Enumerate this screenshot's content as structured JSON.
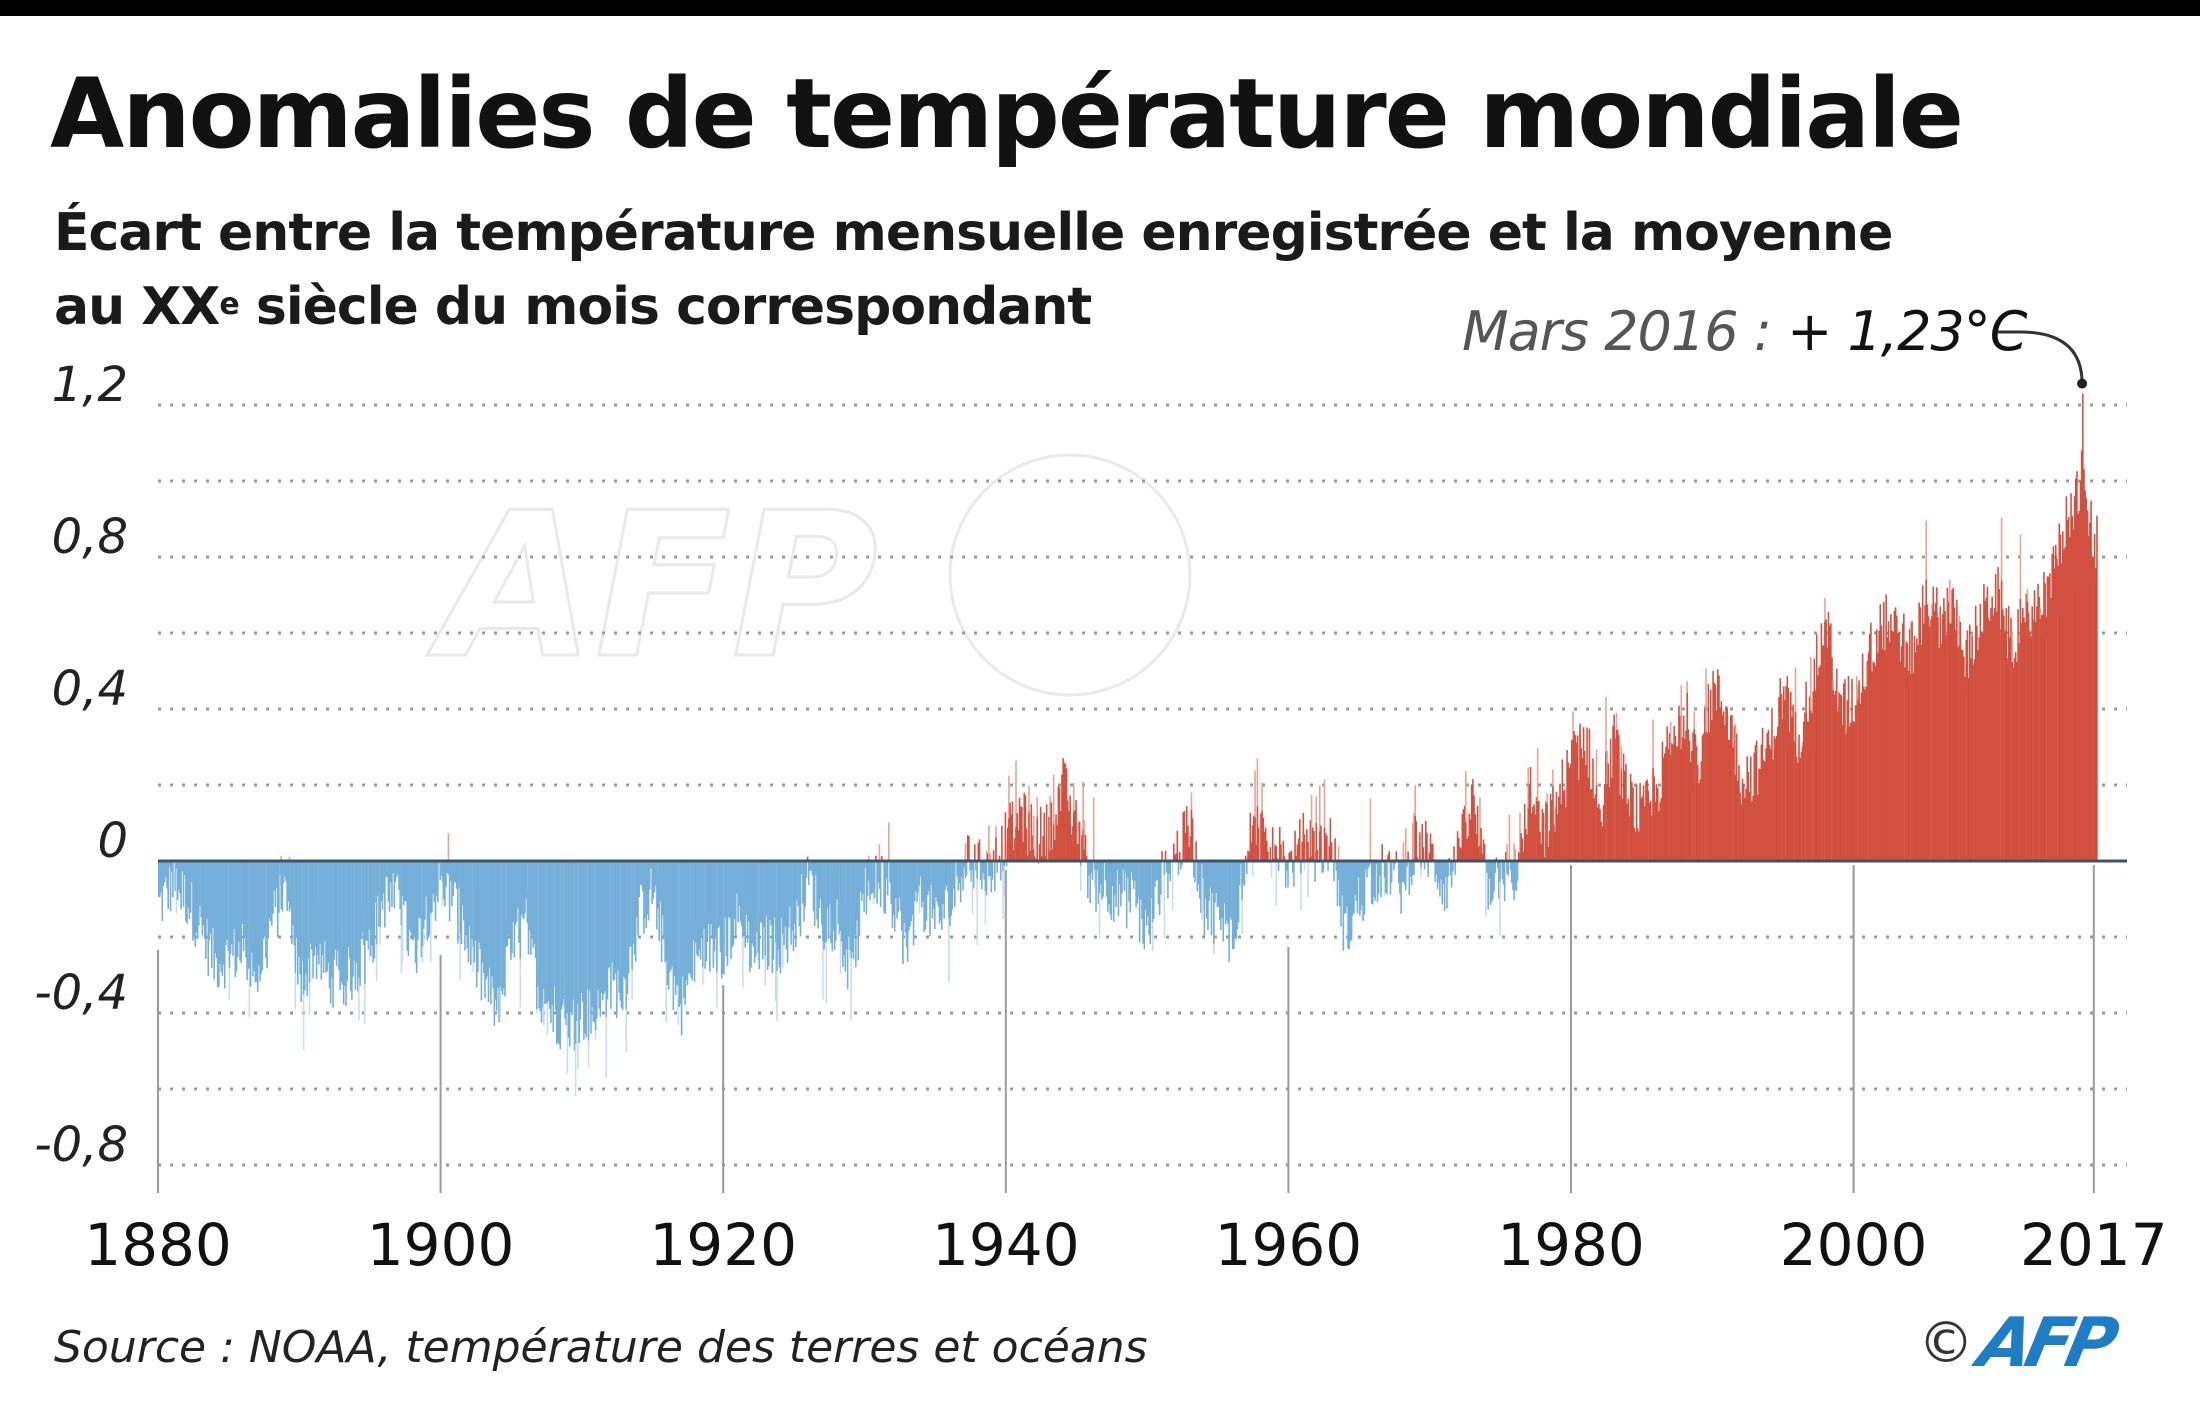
{
  "header": {
    "title": "Anomalies de température mondiale",
    "subtitle_line1": "Écart entre la température mensuelle enregistrée et la moyenne",
    "subtitle_line2_pre": "au XX",
    "subtitle_line2_sup": "e",
    "subtitle_line2_post": " siècle du mois correspondant"
  },
  "annotation": {
    "label": "Mars 2016 : ",
    "value": "+ 1,23°C"
  },
  "footer": {
    "source": "Source : NOAA, température des terres et océans",
    "copyright_symbol": "©",
    "brand": "AFP"
  },
  "colors": {
    "positive": "#d2503f",
    "positive_light": "#eaa293",
    "negative": "#74afd9",
    "negative_light": "#c5def1",
    "zero_line": "#3d5566",
    "grid": "#9a9a9a",
    "brand": "#1f7dc6"
  },
  "chart_data": {
    "type": "bar",
    "title": "Anomalies de température mondiale",
    "subtitle": "Écart entre la température mensuelle enregistrée et la moyenne au XXe siècle du mois correspondant",
    "xlabel": "",
    "ylabel": "",
    "unit": "°C",
    "frequency": "monthly (values below are approximate annual levels read from the chart)",
    "xlim": [
      1880,
      2017
    ],
    "ylim": [
      -0.8,
      1.25
    ],
    "x_ticks": [
      "1880",
      "1900",
      "1920",
      "1940",
      "1960",
      "1980",
      "2000",
      "2017"
    ],
    "x_tick_values": [
      1880,
      1900,
      1920,
      1940,
      1960,
      1980,
      2000,
      2017
    ],
    "y_ticks": [
      "1,2",
      "0,8",
      "0,4",
      "0",
      "-0,4",
      "-0,8"
    ],
    "y_tick_values": [
      1.2,
      0.8,
      0.4,
      0,
      -0.4,
      -0.8
    ],
    "grid": true,
    "grid_step": 0.2,
    "legend": "none",
    "annotation": {
      "label": "Mars 2016 : + 1,23°C",
      "x": 2016.17,
      "y": 1.23
    },
    "years": [
      1880,
      1881,
      1882,
      1883,
      1884,
      1885,
      1886,
      1887,
      1888,
      1889,
      1890,
      1891,
      1892,
      1893,
      1894,
      1895,
      1896,
      1897,
      1898,
      1899,
      1900,
      1901,
      1902,
      1903,
      1904,
      1905,
      1906,
      1907,
      1908,
      1909,
      1910,
      1911,
      1912,
      1913,
      1914,
      1915,
      1916,
      1917,
      1918,
      1919,
      1920,
      1921,
      1922,
      1923,
      1924,
      1925,
      1926,
      1927,
      1928,
      1929,
      1930,
      1931,
      1932,
      1933,
      1934,
      1935,
      1936,
      1937,
      1938,
      1939,
      1940,
      1941,
      1942,
      1943,
      1944,
      1945,
      1946,
      1947,
      1948,
      1949,
      1950,
      1951,
      1952,
      1953,
      1954,
      1955,
      1956,
      1957,
      1958,
      1959,
      1960,
      1961,
      1962,
      1963,
      1964,
      1965,
      1966,
      1967,
      1968,
      1969,
      1970,
      1971,
      1972,
      1973,
      1974,
      1975,
      1976,
      1977,
      1978,
      1979,
      1980,
      1981,
      1982,
      1983,
      1984,
      1985,
      1986,
      1987,
      1988,
      1989,
      1990,
      1991,
      1992,
      1993,
      1994,
      1995,
      1996,
      1997,
      1998,
      1999,
      2000,
      2001,
      2002,
      2003,
      2004,
      2005,
      2006,
      2007,
      2008,
      2009,
      2010,
      2011,
      2012,
      2013,
      2014,
      2015,
      2016,
      2017
    ],
    "values": [
      -0.12,
      -0.06,
      -0.1,
      -0.18,
      -0.27,
      -0.25,
      -0.24,
      -0.3,
      -0.16,
      -0.08,
      -0.33,
      -0.24,
      -0.3,
      -0.32,
      -0.28,
      -0.22,
      -0.1,
      -0.11,
      -0.25,
      -0.13,
      -0.06,
      -0.12,
      -0.24,
      -0.32,
      -0.4,
      -0.22,
      -0.17,
      -0.36,
      -0.4,
      -0.44,
      -0.4,
      -0.41,
      -0.34,
      -0.33,
      -0.14,
      -0.08,
      -0.28,
      -0.38,
      -0.26,
      -0.23,
      -0.23,
      -0.15,
      -0.24,
      -0.22,
      -0.22,
      -0.17,
      -0.05,
      -0.16,
      -0.16,
      -0.3,
      -0.09,
      -0.05,
      -0.1,
      -0.24,
      -0.1,
      -0.16,
      -0.12,
      0.0,
      -0.02,
      -0.02,
      0.06,
      0.12,
      0.06,
      0.08,
      0.2,
      0.08,
      -0.06,
      -0.06,
      -0.1,
      -0.1,
      -0.2,
      -0.05,
      0.02,
      0.08,
      -0.12,
      -0.15,
      -0.2,
      0.04,
      0.08,
      0.04,
      -0.02,
      0.05,
      0.02,
      0.05,
      -0.2,
      -0.1,
      -0.04,
      -0.02,
      -0.07,
      0.05,
      0.02,
      -0.07,
      0.01,
      0.16,
      -0.07,
      -0.02,
      -0.1,
      0.18,
      0.07,
      0.16,
      0.26,
      0.32,
      0.14,
      0.31,
      0.16,
      0.12,
      0.18,
      0.32,
      0.39,
      0.27,
      0.45,
      0.4,
      0.22,
      0.24,
      0.31,
      0.45,
      0.33,
      0.46,
      0.63,
      0.4,
      0.42,
      0.54,
      0.63,
      0.62,
      0.54,
      0.68,
      0.64,
      0.66,
      0.54,
      0.64,
      0.72,
      0.58,
      0.62,
      0.67,
      0.74,
      0.9,
      0.99,
      0.84
    ],
    "peak": {
      "label": "Mars 2016",
      "value": 1.23
    }
  }
}
